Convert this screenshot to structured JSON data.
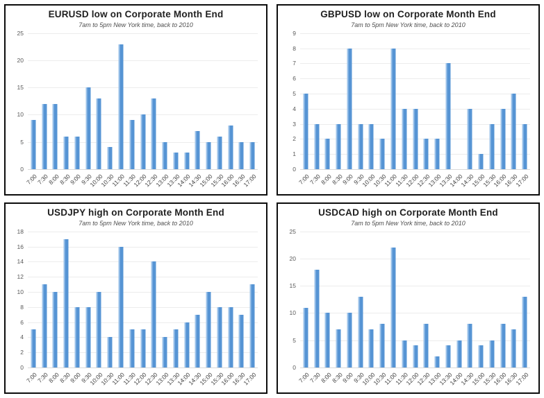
{
  "colors": {
    "bar_fill": "#5694d4",
    "bar_edge_highlight": "#9dc3ea",
    "gridline": "#ececec",
    "axis_baseline": "#d9d9d9",
    "title_text": "#1f1f1f",
    "subtitle_text": "#4d4d4d",
    "tick_text": "#595959",
    "panel_border": "#0c0c0c"
  },
  "chart_data": [
    {
      "type": "bar",
      "title": "EURUSD low on Corporate Month End",
      "subtitle": "7am to 5pm New York time, back to 2010",
      "categories": [
        "7:00",
        "7:30",
        "8:00",
        "8:30",
        "9:00",
        "9:30",
        "10:00",
        "10:30",
        "11:00",
        "11:30",
        "12:00",
        "12:30",
        "13:00",
        "13:30",
        "14:00",
        "14:30",
        "15:00",
        "15:30",
        "16:00",
        "16:30",
        "17:00"
      ],
      "values": [
        9,
        12,
        12,
        6,
        6,
        15,
        13,
        4,
        23,
        9,
        10,
        13,
        5,
        3,
        3,
        7,
        5,
        6,
        8,
        5,
        5
      ],
      "xlabel": "",
      "ylabel": "",
      "ylim": [
        0,
        25
      ],
      "ytick_step": 5,
      "grid": true,
      "legend": false
    },
    {
      "type": "bar",
      "title": "GBPUSD low on Corporate Month End",
      "subtitle": "7am to 5pm New York time, back to 2010",
      "categories": [
        "7:00",
        "7:30",
        "8:00",
        "8:30",
        "9:00",
        "9:30",
        "10:00",
        "10:30",
        "11:00",
        "11:30",
        "12:00",
        "12:30",
        "13:00",
        "13:30",
        "14:00",
        "14:30",
        "15:00",
        "15:30",
        "16:00",
        "16:30",
        "17:00"
      ],
      "values": [
        5,
        3,
        2,
        3,
        8,
        3,
        3,
        2,
        8,
        4,
        4,
        2,
        2,
        7,
        0,
        4,
        1,
        3,
        4,
        5,
        3
      ],
      "xlabel": "",
      "ylabel": "",
      "ylim": [
        0,
        9
      ],
      "ytick_step": 1,
      "grid": true,
      "legend": false
    },
    {
      "type": "bar",
      "title": "USDJPY high on Corporate Month End",
      "subtitle": "7am to 5pm New York time, back to 2010",
      "categories": [
        "7:00",
        "7:30",
        "8:00",
        "8:30",
        "9:00",
        "9:30",
        "10:00",
        "10:30",
        "11:00",
        "11:30",
        "12:00",
        "12:30",
        "13:00",
        "13:30",
        "14:00",
        "14:30",
        "15:00",
        "15:30",
        "16:00",
        "16:30",
        "17:00"
      ],
      "values": [
        5,
        11,
        10,
        17,
        8,
        8,
        10,
        4,
        16,
        5,
        5,
        14,
        4,
        5,
        6,
        7,
        10,
        8,
        8,
        7,
        11
      ],
      "xlabel": "",
      "ylabel": "",
      "ylim": [
        0,
        18
      ],
      "ytick_step": 2,
      "grid": true,
      "legend": false
    },
    {
      "type": "bar",
      "title": "USDCAD high on Corporate Month End",
      "subtitle": "7am to 5pm New York time, back to 2010",
      "categories": [
        "7:00",
        "7:30",
        "8:00",
        "8:30",
        "9:00",
        "9:30",
        "10:00",
        "10:30",
        "11:00",
        "11:30",
        "12:00",
        "12:30",
        "13:00",
        "13:30",
        "14:00",
        "14:30",
        "15:00",
        "15:30",
        "16:00",
        "16:30",
        "17:00"
      ],
      "values": [
        11,
        18,
        10,
        7,
        10,
        13,
        7,
        8,
        22,
        5,
        4,
        8,
        2,
        4,
        5,
        8,
        4,
        5,
        8,
        7,
        13
      ],
      "xlabel": "",
      "ylabel": "",
      "ylim": [
        0,
        25
      ],
      "ytick_step": 5,
      "grid": true,
      "legend": false
    }
  ]
}
